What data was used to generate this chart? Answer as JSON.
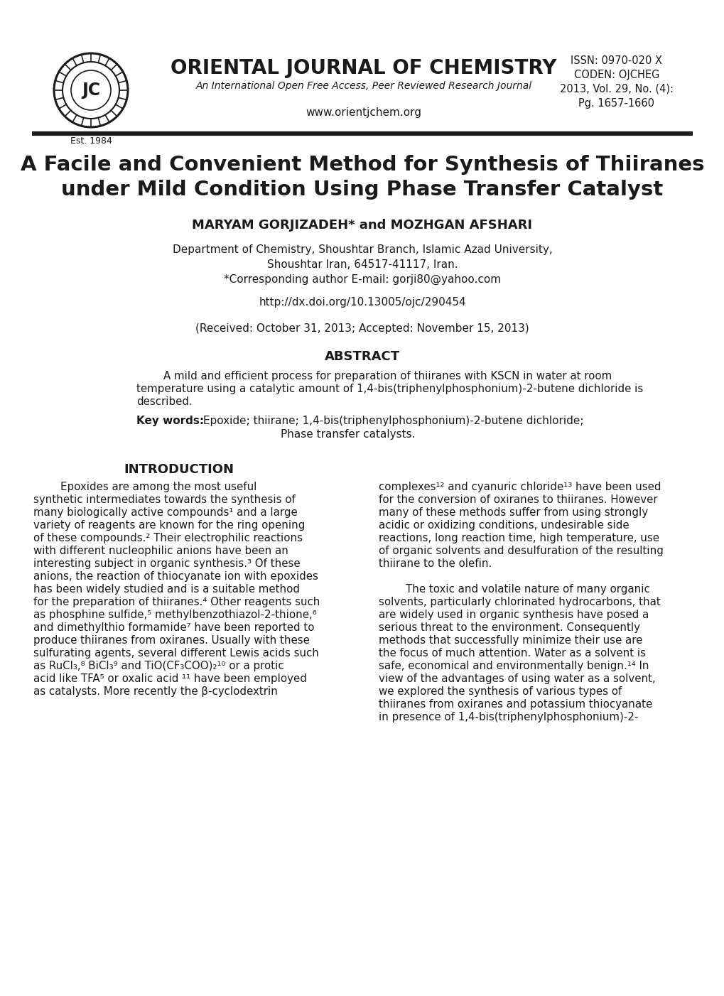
{
  "background_color": "#ffffff",
  "line_color": "#1a1a1a",
  "journal_title": "ORIENTAL JOURNAL OF CHEMISTRY",
  "journal_subtitle": "An International Open Free Access, Peer Reviewed Research Journal",
  "journal_website": "www.orientjchem.org",
  "journal_est": "Est. 1984",
  "issn_line1": "ISSN: 0970-020 X",
  "issn_line2": "CODEN: OJCHEG",
  "issn_line3": "2013, Vol. 29, No. (4):",
  "issn_line4": "Pg. 1657-1660",
  "paper_title_line1": "A Facile and Convenient Method for Synthesis of Thiiranes",
  "paper_title_line2": "under Mild Condition Using Phase Transfer Catalyst",
  "authors": "MARYAM GORJIZADEH* and MOZHGAN AFSHARI",
  "affil1": "Department of Chemistry, Shoushtar Branch, Islamic Azad University,",
  "affil2": "Shoushtar Iran, 64517-41117, Iran.",
  "affil3": "*Corresponding author E-mail: gorji80@yahoo.com",
  "doi": "http://dx.doi.org/10.13005/ojc/290454",
  "received": "(Received: October 31, 2013; Accepted: November 15, 2013)",
  "abstract_title": "ABSTRACT",
  "abstract_lines": [
    "        A mild and efficient process for preparation of thiiranes with KSCN in water at room",
    "temperature using a catalytic amount of 1,4-bis(triphenylphosphonium)-2-butene dichloride is",
    "described."
  ],
  "keywords_bold": "Key words:",
  "keywords_normal": " Epoxide; thiirane; 1,4-bis(triphenylphosphonium)-2-butene dichloride;",
  "keywords_line2": "Phase transfer catalysts.",
  "intro_title": "INTRODUCTION",
  "intro_left_lines": [
    "        Epoxides are among the most useful",
    "synthetic intermediates towards the synthesis of",
    "many biologically active compounds¹ and a large",
    "variety of reagents are known for the ring opening",
    "of these compounds.² Their electrophilic reactions",
    "with different nucleophilic anions have been an",
    "interesting subject in organic synthesis.³ Of these",
    "anions, the reaction of thiocyanate ion with epoxides",
    "has been widely studied and is a suitable method",
    "for the preparation of thiiranes.⁴ Other reagents such",
    "as phosphine sulfide,⁵ methylbenzothiazol-2-thione,⁶",
    "and dimethylthio formamide⁷ have been reported to",
    "produce thiiranes from oxiranes. Usually with these",
    "sulfurating agents, several different Lewis acids such",
    "as RuCl₃,⁸ BiCl₃⁹ and TiO(CF₃COO)₂¹⁰ or a protic",
    "acid like TFA⁵ or oxalic acid ¹¹ have been employed",
    "as catalysts. More recently the β-cyclodextrin"
  ],
  "intro_right_lines": [
    "complexes¹² and cyanuric chloride¹³ have been used",
    "for the conversion of oxiranes to thiiranes. However",
    "many of these methods suffer from using strongly",
    "acidic or oxidizing conditions, undesirable side",
    "reactions, long reaction time, high temperature, use",
    "of organic solvents and desulfuration of the resulting",
    "thiirane to the olefin.",
    "",
    "        The toxic and volatile nature of many organic",
    "solvents, particularly chlorinated hydrocarbons, that",
    "are widely used in organic synthesis have posed a",
    "serious threat to the environment. Consequently",
    "methods that successfully minimize their use are",
    "the focus of much attention. Water as a solvent is",
    "safe, economical and environmentally benign.¹⁴ In",
    "view of the advantages of using water as a solvent,",
    "we explored the synthesis of various types of",
    "thiiranes from oxiranes and potassium thiocyanate",
    "in presence of 1,4-bis(triphenylphosphonium)-2-"
  ]
}
